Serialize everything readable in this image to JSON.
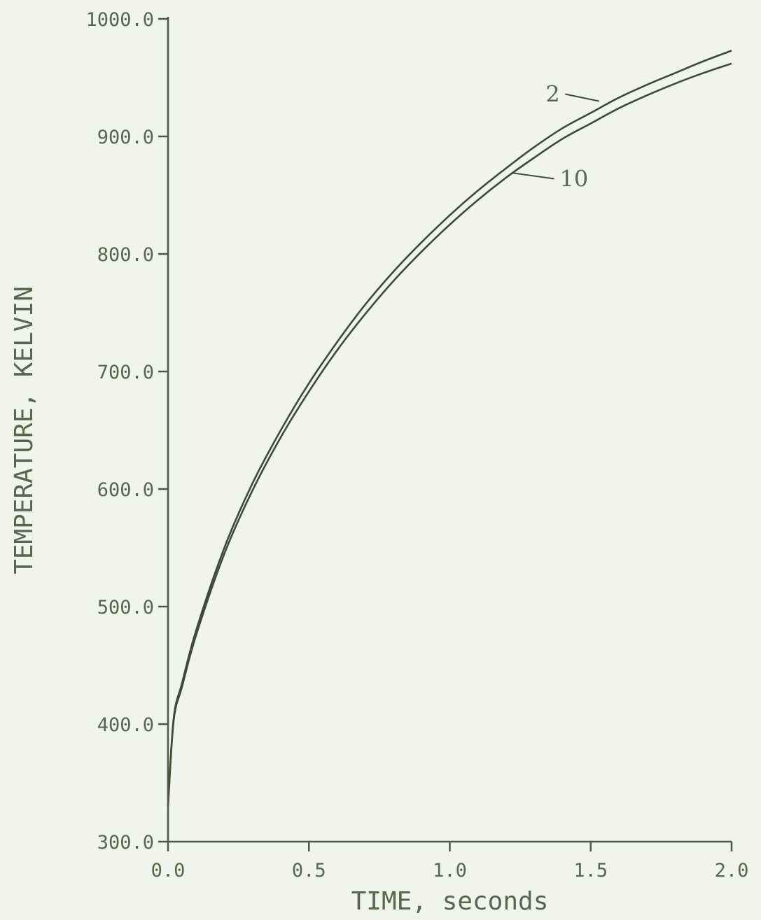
{
  "chart_data": {
    "type": "line",
    "title": "",
    "xlabel": "TIME, seconds",
    "ylabel": "TEMPERATURE, KELVIN",
    "xlim": [
      0.0,
      2.0
    ],
    "ylim": [
      300.0,
      1000.0
    ],
    "x_ticks": [
      "0.0",
      "0.5",
      "1.0",
      "1.5",
      "2.0"
    ],
    "y_ticks": [
      "300.0",
      "400.0",
      "500.0",
      "600.0",
      "700.0",
      "800.0",
      "900.0",
      "1000.0"
    ],
    "grid": false,
    "legend": "none",
    "series": [
      {
        "name": "2",
        "x": [
          0.0,
          0.02,
          0.05,
          0.1,
          0.2,
          0.3,
          0.4,
          0.5,
          0.6,
          0.7,
          0.8,
          0.9,
          1.0,
          1.1,
          1.2,
          1.3,
          1.4,
          1.5,
          1.6,
          1.7,
          1.8,
          1.9,
          2.0
        ],
        "y": [
          330,
          405,
          435,
          480,
          550,
          605,
          650,
          690,
          725,
          757,
          785,
          810,
          833,
          854,
          873,
          891,
          907,
          920,
          933,
          944,
          954,
          964,
          973
        ]
      },
      {
        "name": "10",
        "x": [
          0.0,
          0.02,
          0.05,
          0.1,
          0.2,
          0.3,
          0.4,
          0.5,
          0.6,
          0.7,
          0.8,
          0.9,
          1.0,
          1.1,
          1.2,
          1.3,
          1.4,
          1.5,
          1.6,
          1.7,
          1.8,
          1.9,
          2.0
        ],
        "y": [
          330,
          403,
          432,
          476,
          545,
          599,
          644,
          683,
          718,
          749,
          777,
          802,
          825,
          846,
          865,
          882,
          898,
          911,
          924,
          935,
          945,
          954,
          962
        ]
      }
    ],
    "annotations": [
      {
        "text": "2",
        "series": "2",
        "label_x": 1.34,
        "label_y": 936,
        "anchor_x": 1.53,
        "anchor_y": 930
      },
      {
        "text": "10",
        "series": "10",
        "label_x": 1.39,
        "label_y": 864,
        "anchor_x": 1.22,
        "anchor_y": 869
      }
    ]
  }
}
